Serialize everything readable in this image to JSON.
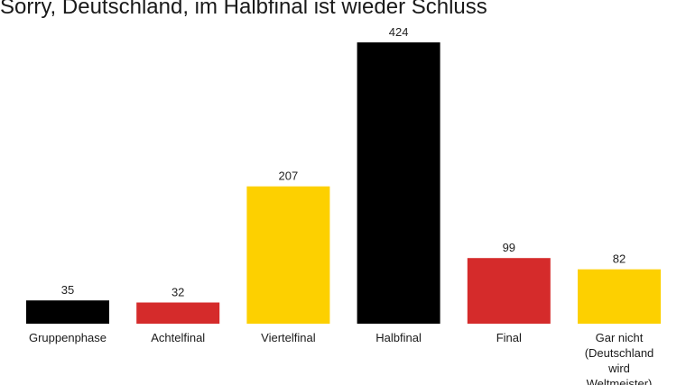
{
  "chart_data": {
    "type": "bar",
    "title": "Sorry, Deutschland, im Halbfinal ist wieder Schluss",
    "categories": [
      [
        "Gruppenphase"
      ],
      [
        "Achtelfinal"
      ],
      [
        "Viertelfinal"
      ],
      [
        "Halbfinal"
      ],
      [
        "Final"
      ],
      [
        "Gar nicht",
        "(Deutschland",
        "wird",
        "Weltmeister)"
      ]
    ],
    "values": [
      35,
      32,
      207,
      424,
      99,
      82
    ],
    "value_labels": [
      "35",
      "32",
      "207",
      "424",
      "99",
      "82"
    ],
    "bar_colors": [
      "#000000",
      "#d52b2b",
      "#fdd000",
      "#000000",
      "#d52b2b",
      "#fdd000"
    ],
    "ylim": [
      0,
      424
    ],
    "grid": false,
    "legend": "none",
    "xlabel": "",
    "ylabel": ""
  }
}
